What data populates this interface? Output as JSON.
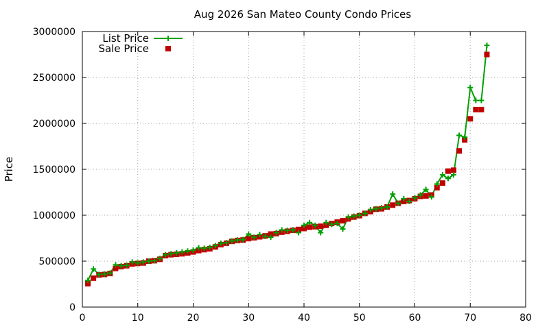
{
  "chart_data": {
    "type": "line",
    "title": "Aug 2026 San Mateo County Condo Prices",
    "xlabel": "",
    "ylabel": "Price",
    "xlim": [
      0,
      80
    ],
    "ylim": [
      0,
      3000000
    ],
    "xticks": [
      0,
      10,
      20,
      30,
      40,
      50,
      60,
      70,
      80
    ],
    "yticks": [
      0,
      500000,
      1000000,
      1500000,
      2000000,
      2500000,
      3000000
    ],
    "grid": true,
    "legend_position": "top-left",
    "series": [
      {
        "name": "List Price",
        "style": "line-with-plus-markers",
        "color": "#00a000",
        "x": [
          1,
          2,
          3,
          4,
          5,
          6,
          7,
          8,
          9,
          10,
          11,
          12,
          13,
          14,
          15,
          16,
          17,
          18,
          19,
          20,
          21,
          22,
          23,
          24,
          25,
          26,
          27,
          28,
          29,
          30,
          31,
          32,
          33,
          34,
          35,
          36,
          37,
          38,
          39,
          40,
          41,
          42,
          43,
          44,
          45,
          46,
          47,
          48,
          49,
          50,
          51,
          52,
          53,
          54,
          55,
          56,
          57,
          58,
          59,
          60,
          61,
          62,
          63,
          64,
          65,
          66,
          67,
          68,
          69,
          70,
          71,
          72,
          73
        ],
        "values": [
          290000,
          415000,
          355000,
          360000,
          370000,
          460000,
          450000,
          455000,
          490000,
          480000,
          490000,
          500000,
          505000,
          530000,
          570000,
          580000,
          590000,
          600000,
          610000,
          620000,
          645000,
          640000,
          650000,
          670000,
          695000,
          700000,
          720000,
          730000,
          735000,
          795000,
          760000,
          790000,
          770000,
          760000,
          810000,
          840000,
          835000,
          840000,
          810000,
          890000,
          920000,
          890000,
          810000,
          920000,
          900000,
          910000,
          850000,
          980000,
          990000,
          1000000,
          1020000,
          1060000,
          1070000,
          1080000,
          1090000,
          1230000,
          1130000,
          1180000,
          1150000,
          1190000,
          1220000,
          1280000,
          1200000,
          1340000,
          1440000,
          1400000,
          1440000,
          1870000,
          1850000,
          2390000,
          2250000,
          2250000,
          2850000
        ]
      },
      {
        "name": "Sale Price",
        "style": "square-markers",
        "color": "#c00000",
        "x": [
          1,
          2,
          3,
          4,
          5,
          6,
          7,
          8,
          9,
          10,
          11,
          12,
          13,
          14,
          15,
          16,
          17,
          18,
          19,
          20,
          21,
          22,
          23,
          24,
          25,
          26,
          27,
          28,
          29,
          30,
          31,
          32,
          33,
          34,
          35,
          36,
          37,
          38,
          39,
          40,
          41,
          42,
          43,
          44,
          45,
          46,
          47,
          48,
          49,
          50,
          51,
          52,
          53,
          54,
          55,
          56,
          57,
          58,
          59,
          60,
          61,
          62,
          63,
          64,
          65,
          66,
          67,
          68,
          69,
          70,
          71,
          72,
          73
        ],
        "values": [
          255000,
          315000,
          350000,
          355000,
          365000,
          420000,
          440000,
          450000,
          470000,
          475000,
          480000,
          500000,
          505000,
          520000,
          560000,
          570000,
          575000,
          580000,
          590000,
          600000,
          615000,
          625000,
          635000,
          655000,
          680000,
          695000,
          715000,
          725000,
          730000,
          745000,
          755000,
          765000,
          775000,
          795000,
          800000,
          815000,
          825000,
          835000,
          845000,
          855000,
          870000,
          875000,
          880000,
          890000,
          910000,
          925000,
          940000,
          960000,
          980000,
          995000,
          1020000,
          1040000,
          1065000,
          1070000,
          1090000,
          1110000,
          1130000,
          1150000,
          1160000,
          1180000,
          1205000,
          1210000,
          1220000,
          1300000,
          1350000,
          1480000,
          1490000,
          1700000,
          1820000,
          2050000,
          2150000,
          2150000,
          2750000
        ]
      }
    ]
  }
}
